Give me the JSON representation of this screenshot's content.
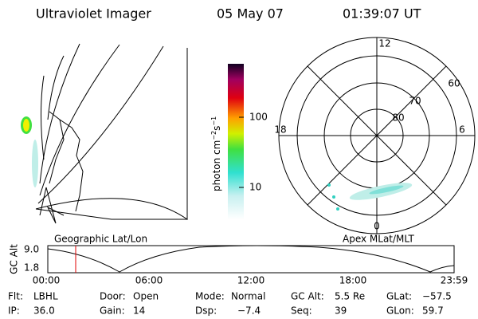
{
  "header": {
    "title": "Ultraviolet Imager",
    "date": "05 May 07",
    "time": "01:39:07 UT"
  },
  "colorbar": {
    "label": [
      "photon cm",
      "−2",
      "s",
      "−1"
    ],
    "ticks": [
      "100",
      "10"
    ]
  },
  "polar_plot": {
    "mlt_labels": [
      "12",
      "18",
      "6",
      "0"
    ],
    "lat_labels": [
      "60",
      "70",
      "80"
    ]
  },
  "panel_labels": {
    "left": "Geographic Lat/Lon",
    "right": "Apex MLat/MLT"
  },
  "altitude_plot": {
    "ylabel": "GC Alt",
    "yticks": [
      "9.0",
      "1.8"
    ],
    "xticks": [
      "00:00",
      "06:00",
      "12:00",
      "18:00",
      "23:59"
    ]
  },
  "info": [
    [
      {
        "label": "Flt:",
        "value": "LBHL"
      },
      {
        "label": "Door:",
        "value": "Open"
      },
      {
        "label": "Mode:",
        "value": "Normal"
      },
      {
        "label": "GC Alt:",
        "value": "5.5 Re"
      },
      {
        "label": "GLat:",
        "value": "−57.5"
      }
    ],
    [
      {
        "label": "IP:",
        "value": "36.0"
      },
      {
        "label": "Gain:",
        "value": "14"
      },
      {
        "label": "Dsp:",
        "value": "−7.4"
      },
      {
        "label": "Seq:",
        "value": "39"
      },
      {
        "label": "GLon:",
        "value": "59.7"
      }
    ]
  ]
}
